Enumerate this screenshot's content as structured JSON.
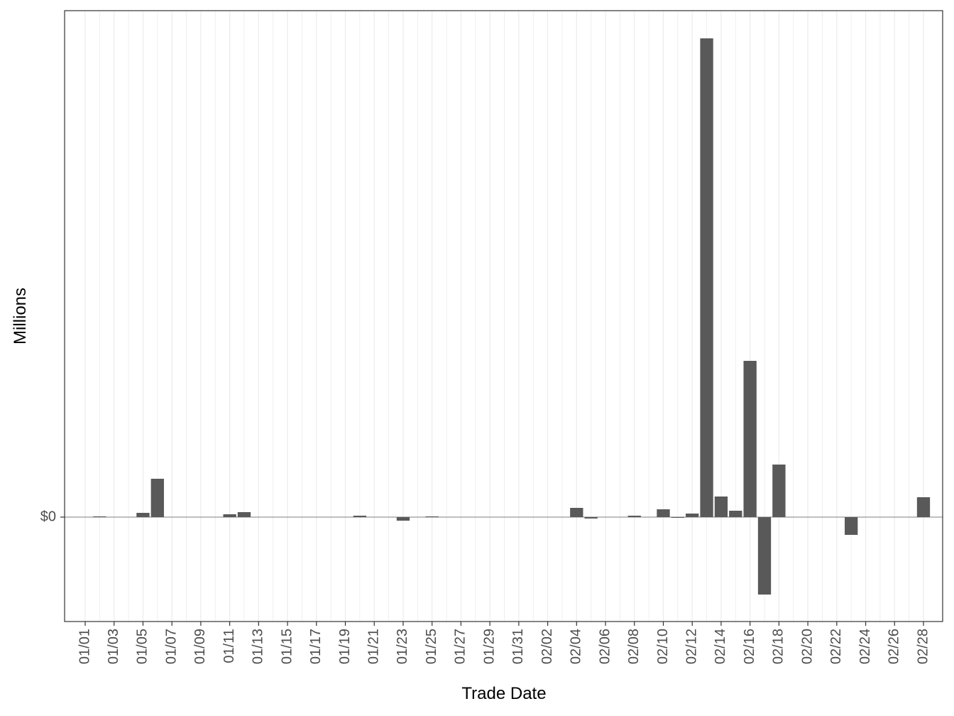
{
  "chart_data": {
    "type": "bar",
    "x_label": "Trade Date",
    "y_label": "Millions",
    "categories": [
      "01/01",
      null,
      "01/03",
      null,
      "01/05",
      null,
      "01/07",
      null,
      "01/09",
      null,
      "01/11",
      null,
      "01/13",
      null,
      "01/15",
      null,
      "01/17",
      null,
      "01/19",
      null,
      "01/21",
      null,
      "01/23",
      null,
      "01/25",
      null,
      "01/27",
      null,
      "01/29",
      null,
      "01/31",
      null,
      "02/02",
      null,
      "02/04",
      null,
      "02/06",
      null,
      "02/08",
      null,
      "02/10",
      null,
      "02/12",
      null,
      "02/14",
      null,
      "02/16",
      null,
      "02/18",
      null,
      "02/20",
      null,
      "02/22",
      null,
      "02/24",
      null,
      "02/26",
      null,
      "02/28"
    ],
    "values": [
      0,
      0.01,
      0,
      0,
      0.06,
      0.54,
      0,
      0,
      0,
      0,
      0.04,
      0.07,
      0,
      0,
      0,
      0,
      0,
      0,
      0,
      0.02,
      0,
      0,
      -0.05,
      0,
      0.01,
      0,
      0,
      0,
      0,
      0,
      0,
      0,
      0,
      0,
      0.13,
      -0.02,
      0,
      0,
      0.02,
      0,
      0.11,
      -0.01,
      0.05,
      6.74,
      0.29,
      0.09,
      2.2,
      -1.09,
      0.74,
      0,
      0,
      0,
      0,
      -0.25,
      0,
      0,
      0,
      0,
      0.28
    ],
    "color": "#595959",
    "ylim": [
      -1.47,
      7.13
    ],
    "yticks": [
      {
        "value": 0,
        "label": "$0"
      }
    ],
    "grid": true
  }
}
